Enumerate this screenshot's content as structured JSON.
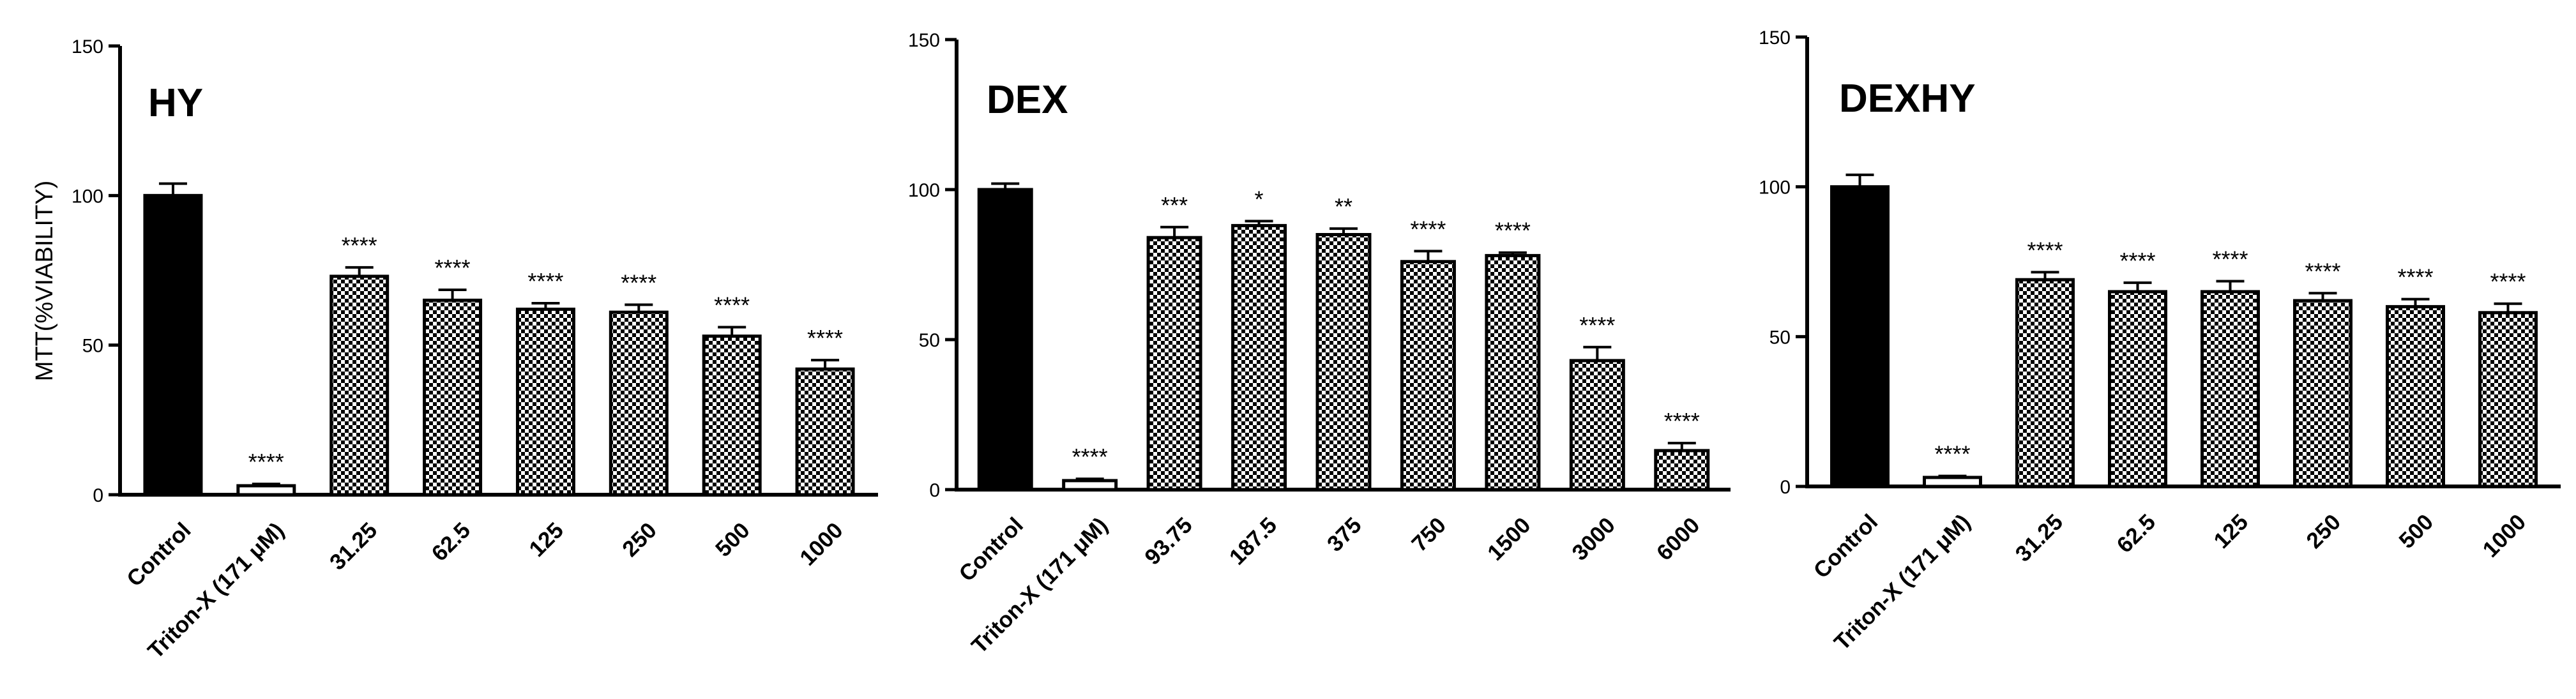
{
  "figure": {
    "ylabel": "MTT(%VIABILITY)"
  },
  "chart_data": [
    {
      "type": "bar",
      "title": "HY",
      "ylabel": "MTT(%VIABILITY)",
      "ylim": [
        0,
        150
      ],
      "yticks": [
        0,
        50,
        100,
        150
      ],
      "categories": [
        "Control",
        "Triton-X (171 μM)",
        "31.25",
        "62.5",
        "125",
        "250",
        "500",
        "1000"
      ],
      "values": [
        100,
        3,
        73,
        65,
        62,
        61,
        53,
        42
      ],
      "errors": [
        4,
        0.6,
        3,
        3.5,
        2,
        2.5,
        3,
        3
      ],
      "significance": [
        "",
        "****",
        "****",
        "****",
        "****",
        "****",
        "****",
        "****"
      ],
      "bar_fill": [
        "solid",
        "white",
        "checker",
        "checker",
        "checker",
        "checker",
        "checker",
        "checker"
      ],
      "grid": false
    },
    {
      "type": "bar",
      "title": "DEX",
      "ylabel": "",
      "ylim": [
        0,
        150
      ],
      "yticks": [
        0,
        50,
        100,
        150
      ],
      "categories": [
        "Control",
        "Triton-X (171 μM)",
        "93.75",
        "187.5",
        "375",
        "750",
        "1500",
        "3000",
        "6000"
      ],
      "values": [
        100,
        3,
        84,
        88,
        85,
        76,
        78,
        43,
        13
      ],
      "errors": [
        2,
        0.6,
        3.5,
        1.5,
        2,
        3.5,
        1,
        4.5,
        2.5
      ],
      "significance": [
        "",
        "****",
        "***",
        "*",
        "**",
        "****",
        "****",
        "****",
        "****"
      ],
      "bar_fill": [
        "solid",
        "white",
        "checker",
        "checker",
        "checker",
        "checker",
        "checker",
        "checker",
        "checker"
      ],
      "grid": false
    },
    {
      "type": "bar",
      "title": "DEXHY",
      "ylabel": "",
      "ylim": [
        0,
        150
      ],
      "yticks": [
        0,
        50,
        100,
        150
      ],
      "categories": [
        "Control",
        "Triton-X (171 μM)",
        "31.25",
        "62.5",
        "125",
        "250",
        "500",
        "1000"
      ],
      "values": [
        100,
        3,
        69,
        65,
        65,
        62,
        60,
        58
      ],
      "errors": [
        4,
        0.5,
        2.5,
        3,
        3.5,
        2.5,
        2.5,
        3
      ],
      "significance": [
        "",
        "****",
        "****",
        "****",
        "****",
        "****",
        "****",
        "****"
      ],
      "bar_fill": [
        "solid",
        "white",
        "checker",
        "checker",
        "checker",
        "checker",
        "checker",
        "checker"
      ],
      "grid": false
    }
  ]
}
